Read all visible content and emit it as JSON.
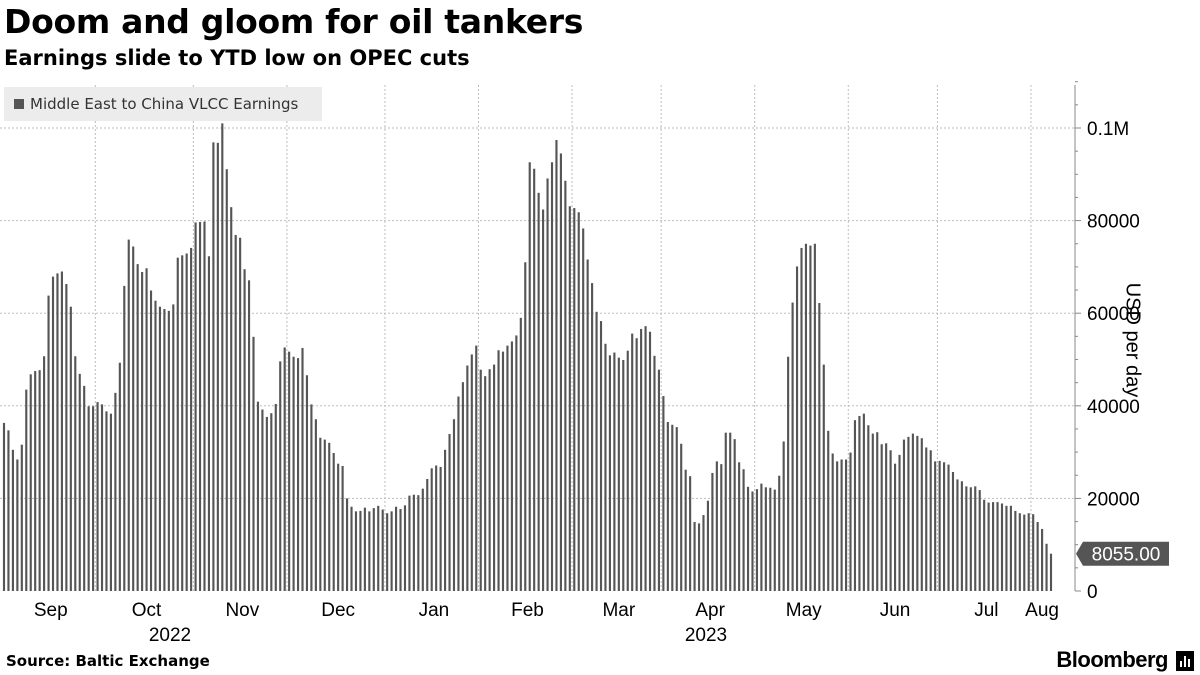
{
  "title": "Doom and gloom for oil tankers",
  "subtitle": "Earnings slide to YTD low on OPEC cuts",
  "source": "Source: Baltic Exchange",
  "brand": "Bloomberg",
  "colors": {
    "bar": "#555555",
    "grid": "#bdbdbd",
    "axis": "#888888",
    "last_label_bg": "#555555"
  },
  "chart_data": {
    "type": "bar",
    "series": [
      {
        "name": "Middle East to China VLCC Earnings",
        "values": [
          36300,
          34700,
          30500,
          28400,
          31600,
          43500,
          46800,
          47500,
          47700,
          50700,
          63800,
          67900,
          68600,
          69000,
          66300,
          61400,
          50700,
          46900,
          44300,
          39900,
          39900,
          40800,
          40300,
          38800,
          38300,
          42800,
          49300,
          65900,
          75900,
          74400,
          70600,
          68900,
          69700,
          64900,
          62700,
          61400,
          60900,
          60500,
          61900,
          72000,
          72500,
          72900,
          74100,
          79600,
          79700,
          79800,
          72300,
          96900,
          96800,
          101000,
          91100,
          82900,
          76900,
          76300,
          69500,
          67100,
          54900,
          40900,
          39200,
          37600,
          38400,
          40400,
          49600,
          52600,
          51700,
          50600,
          50300,
          52500,
          46600,
          40300,
          37100,
          33100,
          32700,
          32000,
          29800,
          27500,
          27000,
          20000,
          18200,
          17200,
          17300,
          18000,
          17200,
          17900,
          18400,
          17600,
          16800,
          17200,
          18200,
          17700,
          18500,
          20600,
          20800,
          20700,
          22100,
          24200,
          26500,
          27100,
          26800,
          30500,
          33900,
          37100,
          42000,
          45100,
          48700,
          51100,
          53000,
          47800,
          46400,
          47900,
          48900,
          52000,
          51700,
          53000,
          53900,
          55200,
          59000,
          71000,
          92600,
          91200,
          86000,
          82400,
          89100,
          92600,
          97400,
          94500,
          88600,
          83100,
          82700,
          81800,
          78300,
          71600,
          66500,
          60300,
          58300,
          53400,
          50900,
          51500,
          50400,
          49900,
          51900,
          55600,
          54600,
          56600,
          57200,
          56000,
          50800,
          47800,
          42100,
          36500,
          35900,
          35400,
          31800,
          26200,
          24800,
          14900,
          14600,
          16400,
          19500,
          25500,
          28000,
          27400,
          34200,
          34200,
          32800,
          27800,
          26300,
          22500,
          21500,
          22000,
          23200,
          22400,
          22300,
          21900,
          24900,
          32300,
          50600,
          62300,
          70100,
          74100,
          75000,
          74600,
          75000,
          62200,
          48900,
          34600,
          29700,
          28000,
          28400,
          28400,
          29900,
          36900,
          37800,
          38300,
          35800,
          34000,
          34300,
          31700,
          31900,
          30400,
          27500,
          29400,
          32700,
          33300,
          34000,
          33500,
          33000,
          31000,
          30400,
          28000,
          28100,
          27800,
          27300,
          25700,
          24100,
          23700,
          22600,
          22400,
          22600,
          21800,
          19700,
          19100,
          19200,
          19200,
          18900,
          18400,
          18400,
          17300,
          16800,
          16500,
          16800,
          16600,
          14900,
          13400,
          10200,
          8055
        ]
      }
    ],
    "x_month_labels": [
      "Sep",
      "Oct",
      "Nov",
      "Dec",
      "Jan",
      "Feb",
      "Mar",
      "Apr",
      "May",
      "Jun",
      "Jul",
      "Aug"
    ],
    "x_year_labels": [
      "2022",
      "2023"
    ],
    "ylabel": "USD per day",
    "y_ticks": [
      {
        "value": 0,
        "label": "0"
      },
      {
        "value": 20000,
        "label": "20000"
      },
      {
        "value": 40000,
        "label": "40000"
      },
      {
        "value": 60000,
        "label": "60000"
      },
      {
        "value": 80000,
        "label": "80000"
      },
      {
        "value": 100000,
        "label": "0.1M"
      }
    ],
    "ylim": [
      0,
      110000
    ],
    "last_value_label": "8055.00",
    "grid": true,
    "legend_position": "top-left",
    "y_axis_side": "right"
  }
}
